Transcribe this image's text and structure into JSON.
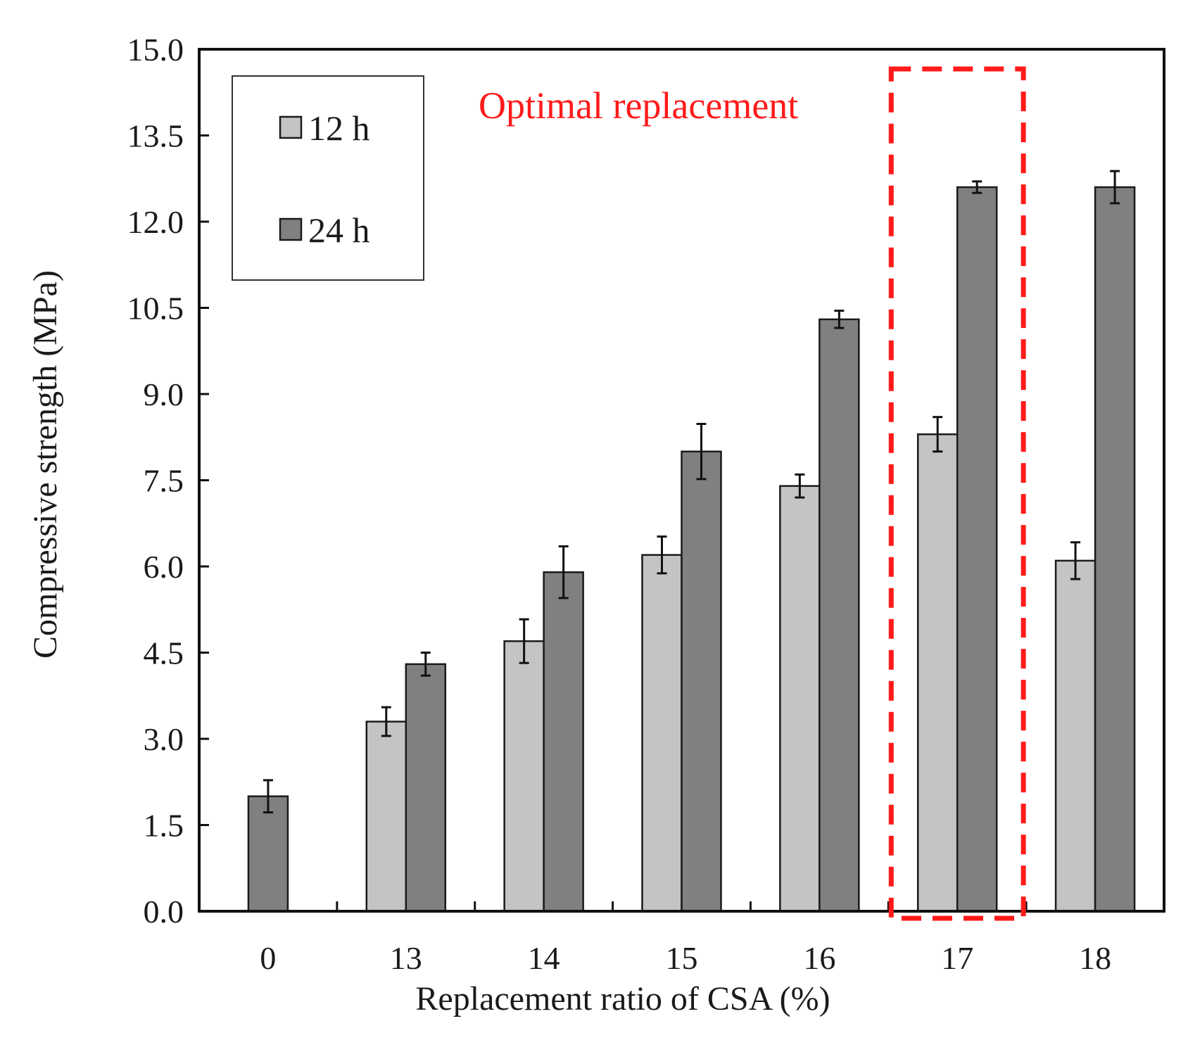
{
  "chart_data": {
    "type": "bar",
    "title": "",
    "xlabel": "Replacement ratio of CSA (%)",
    "ylabel": "Compressive strength (MPa)",
    "ylim": [
      0,
      15
    ],
    "yticks": [
      "0.0",
      "1.5",
      "3.0",
      "4.5",
      "6.0",
      "7.5",
      "9.0",
      "10.5",
      "12.0",
      "13.5",
      "15.0"
    ],
    "categories": [
      "0",
      "13",
      "14",
      "15",
      "16",
      "17",
      "18"
    ],
    "series": [
      {
        "name": "12 h",
        "color": "#c4c4c4",
        "values": [
          null,
          3.3,
          4.7,
          6.2,
          7.4,
          8.3,
          6.1
        ],
        "errors": [
          null,
          0.25,
          0.38,
          0.32,
          0.2,
          0.3,
          0.32
        ]
      },
      {
        "name": "24 h",
        "color": "#808080",
        "values": [
          2.0,
          4.3,
          5.9,
          8.0,
          10.3,
          12.6,
          12.6
        ],
        "errors": [
          0.28,
          0.2,
          0.45,
          0.48,
          0.15,
          0.1,
          0.28
        ]
      }
    ],
    "legend": {
      "position": "top-left",
      "entries": [
        "12 h",
        "24 h"
      ]
    },
    "grid": false,
    "annotation": {
      "text": "Optimal replacement",
      "color": "#ff1a1a",
      "highlight_category": "17"
    }
  }
}
